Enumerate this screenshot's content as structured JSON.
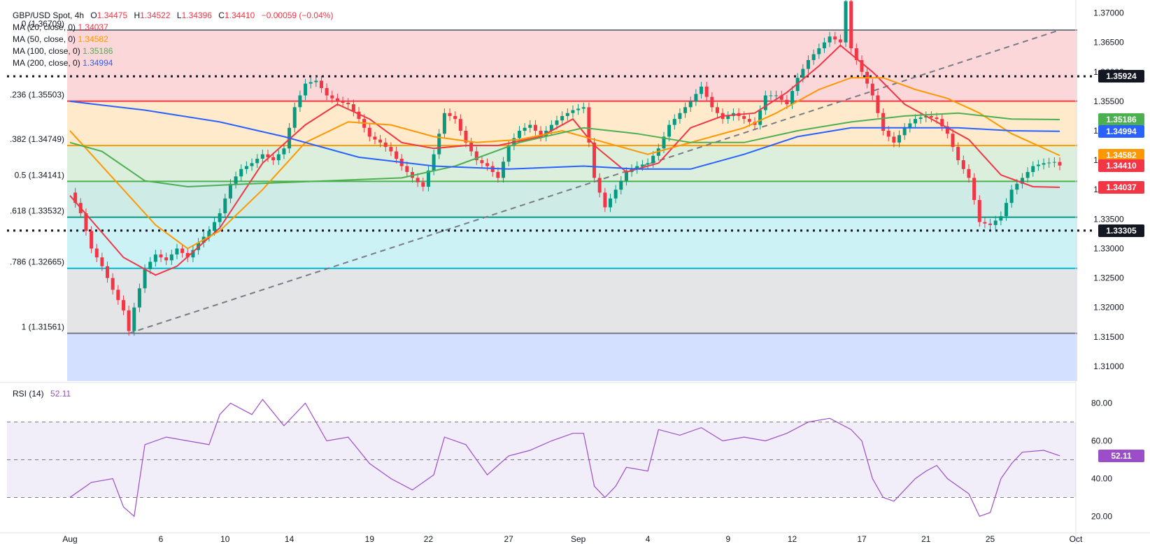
{
  "header": {
    "symbol": "GBP/USD Spot, 4h",
    "o_label": "O",
    "o_value": "1.34475",
    "h_label": "H",
    "h_value": "1.34522",
    "l_label": "L",
    "l_value": "1.34396",
    "c_label": "C",
    "c_value": "1.34410",
    "change": "−0.00059 (−0.04%)",
    "ma": [
      {
        "label": "MA (20, close, 0)",
        "value": "1.34037",
        "color": "#f23645"
      },
      {
        "label": "MA (50, close, 0)",
        "value": "1.34582",
        "color": "#ff9800"
      },
      {
        "label": "MA (100, close, 0)",
        "value": "1.35186",
        "color": "#4caf50"
      },
      {
        "label": "MA (200, close, 0)",
        "value": "1.34994",
        "color": "#2962ff"
      }
    ]
  },
  "rsi_header": {
    "label": "RSI (14)",
    "value": "52.11"
  },
  "colors": {
    "up": "#089981",
    "down": "#f23645",
    "ma20": "#f23645",
    "ma50": "#ff9800",
    "ma100": "#4caf50",
    "ma200": "#2962ff",
    "rsi": "#9c4ec8"
  },
  "chart_data": [
    {
      "type": "candlestick",
      "title": "GBP/USD Spot, 4h",
      "x_labels": [
        "Aug",
        "6",
        "10",
        "14",
        "19",
        "22",
        "27",
        "Sep",
        "4",
        "9",
        "12",
        "17",
        "21",
        "25",
        "Oct"
      ],
      "y_ticks": [
        "1.37000",
        "1.36500",
        "1.36000",
        "1.35500",
        "1.35000",
        "1.34500",
        "1.34000",
        "1.33500",
        "1.33000",
        "1.32500",
        "1.32000",
        "1.31500",
        "1.31000"
      ],
      "ylim": [
        1.3075,
        1.3722
      ],
      "close_series": [
        [
          0,
          1.3395
        ],
        [
          2,
          1.336
        ],
        [
          4,
          1.33
        ],
        [
          6,
          1.327
        ],
        [
          8,
          1.323
        ],
        [
          10,
          1.3195
        ],
        [
          11,
          1.316
        ],
        [
          12,
          1.32
        ],
        [
          14,
          1.3265
        ],
        [
          16,
          1.329
        ],
        [
          18,
          1.328
        ],
        [
          20,
          1.33
        ],
        [
          22,
          1.3285
        ],
        [
          24,
          1.331
        ],
        [
          26,
          1.333
        ],
        [
          28,
          1.336
        ],
        [
          30,
          1.341
        ],
        [
          32,
          1.3435
        ],
        [
          34,
          1.3445
        ],
        [
          36,
          1.346
        ],
        [
          38,
          1.345
        ],
        [
          40,
          1.347
        ],
        [
          42,
          1.354
        ],
        [
          44,
          1.358
        ],
        [
          46,
          1.3585
        ],
        [
          48,
          1.356
        ],
        [
          50,
          1.355
        ],
        [
          52,
          1.3545
        ],
        [
          54,
          1.352
        ],
        [
          56,
          1.349
        ],
        [
          58,
          1.348
        ],
        [
          60,
          1.3465
        ],
        [
          62,
          1.344
        ],
        [
          64,
          1.342
        ],
        [
          66,
          1.3405
        ],
        [
          68,
          1.346
        ],
        [
          70,
          1.353
        ],
        [
          72,
          1.352
        ],
        [
          74,
          1.348
        ],
        [
          76,
          1.345
        ],
        [
          78,
          1.344
        ],
        [
          80,
          1.342
        ],
        [
          82,
          1.3475
        ],
        [
          84,
          1.35
        ],
        [
          86,
          1.351
        ],
        [
          88,
          1.349
        ],
        [
          90,
          1.351
        ],
        [
          92,
          1.3525
        ],
        [
          94,
          1.3535
        ],
        [
          96,
          1.354
        ],
        [
          98,
          1.342
        ],
        [
          100,
          1.337
        ],
        [
          102,
          1.34
        ],
        [
          104,
          1.343
        ],
        [
          106,
          1.344
        ],
        [
          108,
          1.3445
        ],
        [
          110,
          1.347
        ],
        [
          112,
          1.351
        ],
        [
          114,
          1.353
        ],
        [
          116,
          1.355
        ],
        [
          118,
          1.3575
        ],
        [
          120,
          1.354
        ],
        [
          122,
          1.352
        ],
        [
          124,
          1.353
        ],
        [
          126,
          1.352
        ],
        [
          128,
          1.351
        ],
        [
          130,
          1.356
        ],
        [
          132,
          1.356
        ],
        [
          134,
          1.3545
        ],
        [
          136,
          1.359
        ],
        [
          138,
          1.362
        ],
        [
          140,
          1.364
        ],
        [
          142,
          1.366
        ],
        [
          144,
          1.365
        ],
        [
          145,
          1.372
        ],
        [
          146,
          1.364
        ],
        [
          148,
          1.36
        ],
        [
          150,
          1.356
        ],
        [
          152,
          1.35
        ],
        [
          154,
          1.348
        ],
        [
          156,
          1.3505
        ],
        [
          158,
          1.352
        ],
        [
          160,
          1.3525
        ],
        [
          162,
          1.352
        ],
        [
          164,
          1.3495
        ],
        [
          166,
          1.345
        ],
        [
          168,
          1.342
        ],
        [
          170,
          1.3345
        ],
        [
          172,
          1.334
        ],
        [
          174,
          1.3355
        ],
        [
          176,
          1.34
        ],
        [
          178,
          1.342
        ],
        [
          180,
          1.344
        ],
        [
          182,
          1.3445
        ],
        [
          184,
          1.3447
        ],
        [
          185,
          1.3441
        ]
      ],
      "moving_averages": [
        {
          "name": "MA (20, close, 0)",
          "values": [
            [
              0,
              1.339
            ],
            [
              10,
              1.3285
            ],
            [
              16,
              1.3255
            ],
            [
              20,
              1.327
            ],
            [
              28,
              1.3335
            ],
            [
              36,
              1.3445
            ],
            [
              44,
              1.351
            ],
            [
              50,
              1.3545
            ],
            [
              56,
              1.352
            ],
            [
              62,
              1.348
            ],
            [
              68,
              1.347
            ],
            [
              74,
              1.3475
            ],
            [
              80,
              1.3475
            ],
            [
              88,
              1.349
            ],
            [
              94,
              1.352
            ],
            [
              98,
              1.3475
            ],
            [
              104,
              1.343
            ],
            [
              110,
              1.3445
            ],
            [
              116,
              1.3505
            ],
            [
              122,
              1.3525
            ],
            [
              128,
              1.353
            ],
            [
              134,
              1.3565
            ],
            [
              140,
              1.361
            ],
            [
              144,
              1.3645
            ],
            [
              150,
              1.36
            ],
            [
              156,
              1.3545
            ],
            [
              162,
              1.3515
            ],
            [
              168,
              1.3485
            ],
            [
              174,
              1.3425
            ],
            [
              180,
              1.3405
            ],
            [
              185,
              1.3404
            ]
          ]
        },
        {
          "name": "MA (50, close, 0)",
          "values": [
            [
              0,
              1.35
            ],
            [
              8,
              1.342
            ],
            [
              16,
              1.334
            ],
            [
              22,
              1.33
            ],
            [
              28,
              1.333
            ],
            [
              36,
              1.34
            ],
            [
              44,
              1.348
            ],
            [
              52,
              1.3515
            ],
            [
              60,
              1.351
            ],
            [
              68,
              1.349
            ],
            [
              76,
              1.348
            ],
            [
              84,
              1.3485
            ],
            [
              92,
              1.35
            ],
            [
              100,
              1.348
            ],
            [
              108,
              1.346
            ],
            [
              114,
              1.3475
            ],
            [
              120,
              1.349
            ],
            [
              126,
              1.3505
            ],
            [
              132,
              1.353
            ],
            [
              140,
              1.357
            ],
            [
              146,
              1.359
            ],
            [
              152,
              1.359
            ],
            [
              158,
              1.357
            ],
            [
              164,
              1.3555
            ],
            [
              170,
              1.353
            ],
            [
              176,
              1.3495
            ],
            [
              185,
              1.3458
            ]
          ]
        },
        {
          "name": "MA (100, close, 0)",
          "values": [
            [
              0,
              1.348
            ],
            [
              6,
              1.3465
            ],
            [
              14,
              1.3415
            ],
            [
              22,
              1.3405
            ],
            [
              34,
              1.341
            ],
            [
              48,
              1.3415
            ],
            [
              62,
              1.342
            ],
            [
              72,
              1.344
            ],
            [
              84,
              1.348
            ],
            [
              96,
              1.3505
            ],
            [
              106,
              1.3495
            ],
            [
              116,
              1.348
            ],
            [
              126,
              1.348
            ],
            [
              136,
              1.35
            ],
            [
              146,
              1.3515
            ],
            [
              156,
              1.3525
            ],
            [
              166,
              1.353
            ],
            [
              176,
              1.352
            ],
            [
              185,
              1.3519
            ]
          ]
        },
        {
          "name": "MA (200, close, 0)",
          "values": [
            [
              0,
              1.355
            ],
            [
              14,
              1.3535
            ],
            [
              28,
              1.3515
            ],
            [
              40,
              1.349
            ],
            [
              54,
              1.3455
            ],
            [
              68,
              1.344
            ],
            [
              82,
              1.3435
            ],
            [
              96,
              1.344
            ],
            [
              106,
              1.3435
            ],
            [
              116,
              1.3435
            ],
            [
              126,
              1.346
            ],
            [
              136,
              1.349
            ],
            [
              146,
              1.3505
            ],
            [
              156,
              1.3505
            ],
            [
              166,
              1.3505
            ],
            [
              176,
              1.35
            ],
            [
              185,
              1.3499
            ]
          ]
        }
      ],
      "fib_levels": [
        {
          "label": "0 (1.36709)",
          "value": 1.36709
        },
        {
          "label": ".236 (1.35503)",
          "value": 1.35503
        },
        {
          "label": ".382 (1.34749)",
          "value": 1.34749
        },
        {
          "label": "0.5 (1.34141)",
          "value": 1.34141
        },
        {
          "label": ".618 (1.33532)",
          "value": 1.33532
        },
        {
          "label": ".786 (1.32665)",
          "value": 1.32665
        },
        {
          "label": "1 (1.31561)",
          "value": 1.31561
        }
      ],
      "horizontal_lines": [
        {
          "label": "1.35924",
          "value": 1.35924
        },
        {
          "label": "1.33305",
          "value": 1.33305
        }
      ],
      "trendline": {
        "from": [
          11,
          1.3156
        ],
        "to": [
          185,
          1.3671
        ]
      },
      "price_tags": [
        {
          "label": "1.35924",
          "value": 1.35924,
          "color": "#131722"
        },
        {
          "label": "1.35186",
          "value": 1.35186,
          "color": "#4caf50"
        },
        {
          "label": "1.34994",
          "value": 1.34994,
          "color": "#2962ff"
        },
        {
          "label": "1.34582",
          "value": 1.34582,
          "color": "#ff9800"
        },
        {
          "label": "1.34410",
          "value": 1.3441,
          "color": "#f23645"
        },
        {
          "label": "1.34037",
          "value": 1.34037,
          "color": "#f23645"
        },
        {
          "label": "1.33305",
          "value": 1.33305,
          "color": "#131722"
        }
      ]
    },
    {
      "type": "line",
      "title": "RSI (14)",
      "y_ticks": [
        "80.00",
        "60.00",
        "40.00",
        "20.00"
      ],
      "ylim": [
        12,
        88
      ],
      "bands": [
        30,
        50,
        70
      ],
      "values": [
        [
          0,
          30
        ],
        [
          4,
          38
        ],
        [
          8,
          40
        ],
        [
          10,
          25
        ],
        [
          12,
          20
        ],
        [
          14,
          58
        ],
        [
          18,
          62
        ],
        [
          22,
          60
        ],
        [
          26,
          58
        ],
        [
          28,
          74
        ],
        [
          30,
          80
        ],
        [
          34,
          74
        ],
        [
          36,
          82
        ],
        [
          40,
          68
        ],
        [
          44,
          80
        ],
        [
          48,
          60
        ],
        [
          52,
          62
        ],
        [
          56,
          48
        ],
        [
          60,
          40
        ],
        [
          64,
          34
        ],
        [
          68,
          42
        ],
        [
          70,
          62
        ],
        [
          74,
          58
        ],
        [
          78,
          42
        ],
        [
          82,
          52
        ],
        [
          86,
          55
        ],
        [
          90,
          60
        ],
        [
          94,
          64
        ],
        [
          96,
          64
        ],
        [
          98,
          36
        ],
        [
          100,
          30
        ],
        [
          102,
          36
        ],
        [
          104,
          46
        ],
        [
          108,
          44
        ],
        [
          110,
          66
        ],
        [
          114,
          63
        ],
        [
          118,
          67
        ],
        [
          122,
          60
        ],
        [
          126,
          62
        ],
        [
          130,
          60
        ],
        [
          134,
          64
        ],
        [
          138,
          70
        ],
        [
          142,
          72
        ],
        [
          146,
          66
        ],
        [
          148,
          60
        ],
        [
          150,
          40
        ],
        [
          152,
          30
        ],
        [
          154,
          28
        ],
        [
          158,
          40
        ],
        [
          160,
          44
        ],
        [
          162,
          47
        ],
        [
          164,
          40
        ],
        [
          168,
          32
        ],
        [
          170,
          20
        ],
        [
          172,
          22
        ],
        [
          174,
          40
        ],
        [
          176,
          48
        ],
        [
          178,
          54
        ],
        [
          182,
          55
        ],
        [
          185,
          52.11
        ]
      ],
      "price_tag": {
        "label": "52.11",
        "value": 52.11,
        "color": "#9c4ec8"
      }
    }
  ]
}
